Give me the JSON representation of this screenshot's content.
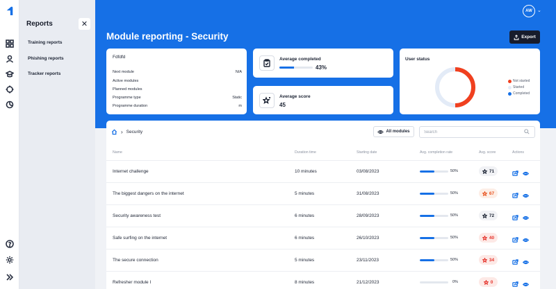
{
  "sidebar": {
    "title": "Reports",
    "close_glyph": "✕",
    "items": [
      {
        "label": "Training reports"
      },
      {
        "label": "Phishing reports"
      },
      {
        "label": "Tracker reports"
      }
    ]
  },
  "header": {
    "avatar_initials": "AW",
    "title": "Module reporting - Security",
    "export_label": "Export"
  },
  "info": {
    "name": "Fdfdfd",
    "rows": [
      {
        "label": "Next module",
        "value": "N/A"
      },
      {
        "label": "Active modules",
        "value": ""
      },
      {
        "label": "Planned modules",
        "value": ""
      },
      {
        "label": "Programme type",
        "value": "Static"
      },
      {
        "label": "Programme duration",
        "value": "m"
      }
    ]
  },
  "stats": {
    "avg_completed_label": "Average completed",
    "avg_completed_value": "43%",
    "avg_completed_fraction": 0.43,
    "avg_score_label": "Average score",
    "avg_score_value": "45"
  },
  "user_status": {
    "title": "User status",
    "legend": [
      {
        "label": "Not started",
        "color": "#f0401f"
      },
      {
        "label": "Started",
        "color": "#e3ebf7"
      },
      {
        "label": "Completed",
        "color": "#1670e6"
      }
    ]
  },
  "table": {
    "breadcrumb": "Security",
    "filter_label": "All modules",
    "search_placeholder": "Search",
    "headers": [
      "Name",
      "Duration time",
      "Starting date",
      "Avg. completion rate",
      "Avg. score",
      "Actions"
    ],
    "rows": [
      {
        "name": "Internet challenge",
        "duration": "10 minutes",
        "date": "03/08/2023",
        "rate": 0.5,
        "rate_label": "50%",
        "score": "71",
        "score_level": "neutral"
      },
      {
        "name": "The biggest dangers on the internet",
        "duration": "5 minutes",
        "date": "31/08/2023",
        "rate": 0.5,
        "rate_label": "50%",
        "score": "67",
        "score_level": "warn"
      },
      {
        "name": "Security awareness test",
        "duration": "6 minutes",
        "date": "28/09/2023",
        "rate": 0.5,
        "rate_label": "50%",
        "score": "72",
        "score_level": "neutral"
      },
      {
        "name": "Safe surfing on the internet",
        "duration": "6 minutes",
        "date": "26/10/2023",
        "rate": 0.5,
        "rate_label": "50%",
        "score": "40",
        "score_level": "bad"
      },
      {
        "name": "The secure connection",
        "duration": "5 minutes",
        "date": "23/11/2023",
        "rate": 0.5,
        "rate_label": "50%",
        "score": "34",
        "score_level": "bad"
      },
      {
        "name": "Refresher module I",
        "duration": "8 minutes",
        "date": "21/12/2023",
        "rate": 0,
        "rate_label": "0%",
        "score": "0",
        "score_level": "bad"
      }
    ]
  },
  "colors": {
    "brand_blue": "#1670e6",
    "danger": "#f0401f",
    "dark": "#171c2c"
  }
}
